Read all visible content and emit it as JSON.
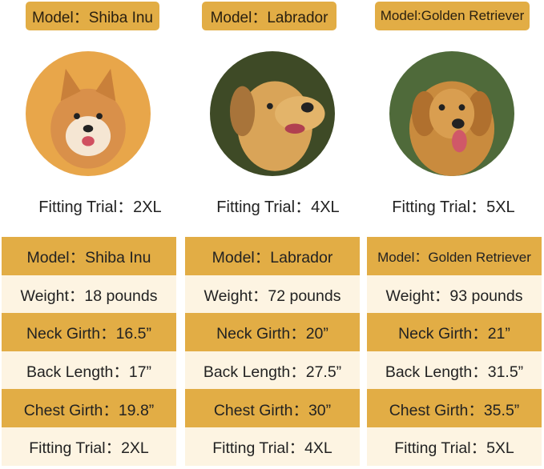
{
  "cards": [
    {
      "model": "Model：Shiba Inu",
      "photo": "shiba-inu-photo",
      "fitting": "Fitting Trial：2XL",
      "fur": "#D9904A",
      "bg": "#E8A64A"
    },
    {
      "model": "Model：Labrador",
      "photo": "labrador-photo",
      "fitting": "Fitting Trial：4XL",
      "fur": "#D9A458",
      "bg": "#3E4A26"
    },
    {
      "model": "Model:Golden Retriever",
      "photo": "golden-retriever-photo",
      "fitting": "Fitting Trial：5XL",
      "fur": "#C98B3E",
      "bg": "#4F6A3A"
    }
  ],
  "table": [
    {
      "model": "Model：Shiba Inu",
      "weight": "Weight：18 pounds",
      "neck": "Neck Girth：16.5”",
      "back": "Back Length：17”",
      "chest": "Chest Girth：19.8”",
      "fitting": "Fitting Trial：2XL"
    },
    {
      "model": "Model：Labrador",
      "weight": "Weight：72 pounds",
      "neck": "Neck Girth：20”",
      "back": "Back Length：27.5”",
      "chest": "Chest Girth：30”",
      "fitting": "Fitting Trial：4XL"
    },
    {
      "model": "Model：Golden Retriever",
      "weight": "Weight：93 pounds",
      "neck": "Neck Girth：21”",
      "back": "Back Length：31.5”",
      "chest": "Chest Girth：35.5”",
      "fitting": "Fitting Trial：5XL"
    }
  ],
  "colors": {
    "gold": "#E2AD45",
    "cream": "#FDF4E2"
  }
}
